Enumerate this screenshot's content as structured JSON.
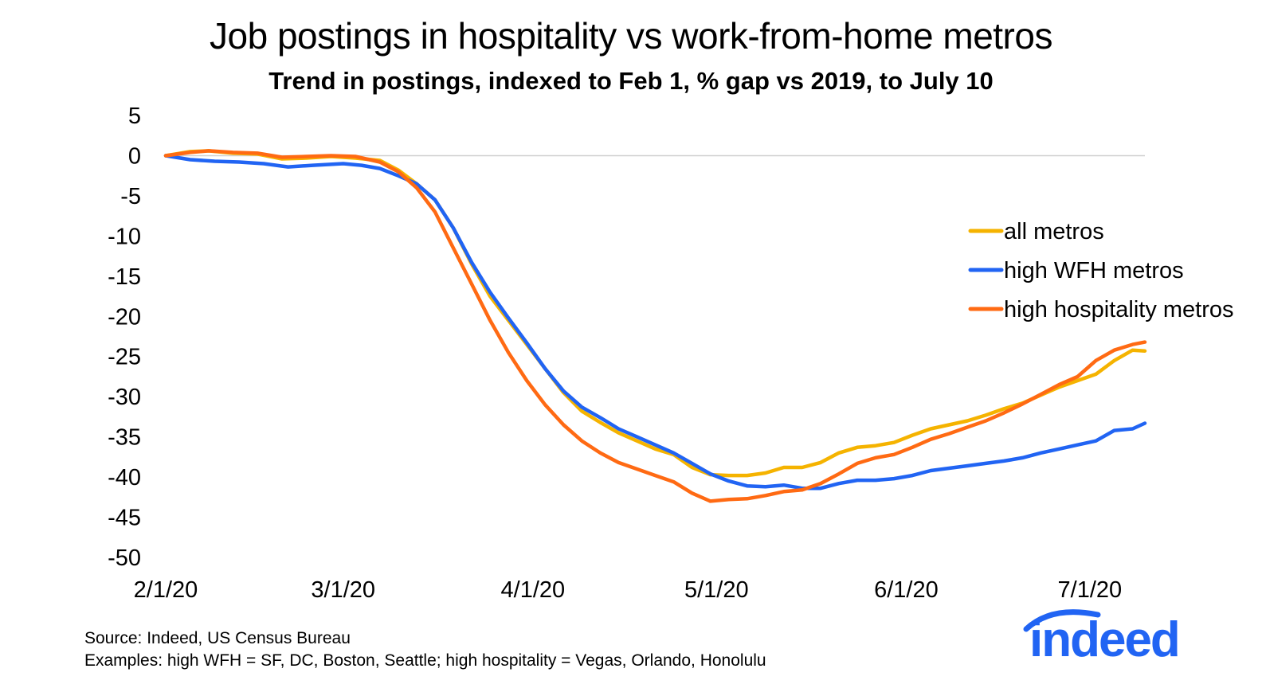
{
  "chart_data": {
    "type": "line",
    "title": "Job postings in hospitality vs work-from-home metros",
    "subtitle": "Trend in postings, indexed to Feb 1, % gap vs 2019, to July 10",
    "xlabel": "",
    "ylabel": "",
    "x_tick_labels": [
      "2/1/20",
      "3/1/20",
      "4/1/20",
      "5/1/20",
      "6/1/20",
      "7/1/20"
    ],
    "x_tick_dates": [
      "2020-02-01",
      "2020-03-01",
      "2020-04-01",
      "2020-05-01",
      "2020-06-01",
      "2020-07-01"
    ],
    "x_range": [
      "2020-02-01",
      "2020-07-10"
    ],
    "ylim": [
      -50,
      5
    ],
    "y_ticks": [
      5,
      0,
      -5,
      -10,
      -15,
      -20,
      -25,
      -30,
      -35,
      -40,
      -45,
      -50
    ],
    "grid": false,
    "zero_line": true,
    "legend_position": "right",
    "series": [
      {
        "name": "all metros",
        "color": "#f5b300",
        "points": [
          [
            "2020-02-01",
            0
          ],
          [
            "2020-02-05",
            0.5
          ],
          [
            "2020-02-08",
            0.6
          ],
          [
            "2020-02-12",
            0.3
          ],
          [
            "2020-02-16",
            0.2
          ],
          [
            "2020-02-20",
            -0.4
          ],
          [
            "2020-02-24",
            -0.3
          ],
          [
            "2020-02-28",
            -0.1
          ],
          [
            "2020-03-03",
            -0.3
          ],
          [
            "2020-03-07",
            -0.6
          ],
          [
            "2020-03-10",
            -1.8
          ],
          [
            "2020-03-13",
            -3.5
          ],
          [
            "2020-03-16",
            -5.5
          ],
          [
            "2020-03-19",
            -9
          ],
          [
            "2020-03-22",
            -13.5
          ],
          [
            "2020-03-25",
            -17.5
          ],
          [
            "2020-03-28",
            -20.5
          ],
          [
            "2020-03-31",
            -23.5
          ],
          [
            "2020-04-03",
            -26.5
          ],
          [
            "2020-04-06",
            -29.5
          ],
          [
            "2020-04-09",
            -31.8
          ],
          [
            "2020-04-12",
            -33.2
          ],
          [
            "2020-04-15",
            -34.5
          ],
          [
            "2020-04-18",
            -35.5
          ],
          [
            "2020-04-21",
            -36.5
          ],
          [
            "2020-04-24",
            -37.2
          ],
          [
            "2020-04-27",
            -38.8
          ],
          [
            "2020-04-30",
            -39.7
          ],
          [
            "2020-05-03",
            -39.8
          ],
          [
            "2020-05-06",
            -39.8
          ],
          [
            "2020-05-09",
            -39.5
          ],
          [
            "2020-05-12",
            -38.8
          ],
          [
            "2020-05-15",
            -38.8
          ],
          [
            "2020-05-18",
            -38.2
          ],
          [
            "2020-05-21",
            -37
          ],
          [
            "2020-05-24",
            -36.3
          ],
          [
            "2020-05-27",
            -36.1
          ],
          [
            "2020-05-30",
            -35.7
          ],
          [
            "2020-06-02",
            -34.8
          ],
          [
            "2020-06-05",
            -34
          ],
          [
            "2020-06-08",
            -33.5
          ],
          [
            "2020-06-11",
            -33
          ],
          [
            "2020-06-14",
            -32.3
          ],
          [
            "2020-06-17",
            -31.5
          ],
          [
            "2020-06-20",
            -30.8
          ],
          [
            "2020-06-23",
            -29.8
          ],
          [
            "2020-06-26",
            -28.8
          ],
          [
            "2020-06-29",
            -28
          ],
          [
            "2020-07-02",
            -27.2
          ],
          [
            "2020-07-05",
            -25.5
          ],
          [
            "2020-07-08",
            -24.2
          ],
          [
            "2020-07-10",
            -24.3
          ]
        ]
      },
      {
        "name": "high WFH metros",
        "color": "#2164f3",
        "points": [
          [
            "2020-02-01",
            0
          ],
          [
            "2020-02-05",
            -0.5
          ],
          [
            "2020-02-09",
            -0.7
          ],
          [
            "2020-02-13",
            -0.8
          ],
          [
            "2020-02-17",
            -1
          ],
          [
            "2020-02-21",
            -1.4
          ],
          [
            "2020-02-25",
            -1.2
          ],
          [
            "2020-03-01",
            -1
          ],
          [
            "2020-03-04",
            -1.2
          ],
          [
            "2020-03-07",
            -1.6
          ],
          [
            "2020-03-10",
            -2.5
          ],
          [
            "2020-03-13",
            -3.5
          ],
          [
            "2020-03-16",
            -5.5
          ],
          [
            "2020-03-19",
            -9
          ],
          [
            "2020-03-22",
            -13.3
          ],
          [
            "2020-03-25",
            -17
          ],
          [
            "2020-03-28",
            -20.2
          ],
          [
            "2020-03-31",
            -23.3
          ],
          [
            "2020-04-03",
            -26.5
          ],
          [
            "2020-04-06",
            -29.3
          ],
          [
            "2020-04-09",
            -31.3
          ],
          [
            "2020-04-12",
            -32.6
          ],
          [
            "2020-04-15",
            -34
          ],
          [
            "2020-04-18",
            -35
          ],
          [
            "2020-04-21",
            -36
          ],
          [
            "2020-04-24",
            -37
          ],
          [
            "2020-04-27",
            -38.3
          ],
          [
            "2020-04-30",
            -39.6
          ],
          [
            "2020-05-03",
            -40.5
          ],
          [
            "2020-05-06",
            -41.1
          ],
          [
            "2020-05-09",
            -41.2
          ],
          [
            "2020-05-12",
            -41
          ],
          [
            "2020-05-15",
            -41.4
          ],
          [
            "2020-05-18",
            -41.4
          ],
          [
            "2020-05-21",
            -40.8
          ],
          [
            "2020-05-24",
            -40.4
          ],
          [
            "2020-05-27",
            -40.4
          ],
          [
            "2020-05-30",
            -40.2
          ],
          [
            "2020-06-02",
            -39.8
          ],
          [
            "2020-06-05",
            -39.2
          ],
          [
            "2020-06-08",
            -38.9
          ],
          [
            "2020-06-11",
            -38.6
          ],
          [
            "2020-06-14",
            -38.3
          ],
          [
            "2020-06-17",
            -38
          ],
          [
            "2020-06-20",
            -37.6
          ],
          [
            "2020-06-23",
            -37
          ],
          [
            "2020-06-26",
            -36.5
          ],
          [
            "2020-06-29",
            -36
          ],
          [
            "2020-07-02",
            -35.5
          ],
          [
            "2020-07-05",
            -34.2
          ],
          [
            "2020-07-08",
            -34
          ],
          [
            "2020-07-10",
            -33.3
          ]
        ]
      },
      {
        "name": "high hospitality metros",
        "color": "#ff6a13",
        "points": [
          [
            "2020-02-01",
            0
          ],
          [
            "2020-02-05",
            0.4
          ],
          [
            "2020-02-08",
            0.6
          ],
          [
            "2020-02-12",
            0.4
          ],
          [
            "2020-02-16",
            0.3
          ],
          [
            "2020-02-20",
            -0.2
          ],
          [
            "2020-02-24",
            -0.1
          ],
          [
            "2020-02-28",
            0
          ],
          [
            "2020-03-03",
            -0.1
          ],
          [
            "2020-03-07",
            -0.8
          ],
          [
            "2020-03-10",
            -2
          ],
          [
            "2020-03-13",
            -4
          ],
          [
            "2020-03-16",
            -7
          ],
          [
            "2020-03-19",
            -11.5
          ],
          [
            "2020-03-22",
            -16
          ],
          [
            "2020-03-25",
            -20.5
          ],
          [
            "2020-03-28",
            -24.5
          ],
          [
            "2020-03-31",
            -28
          ],
          [
            "2020-04-03",
            -31
          ],
          [
            "2020-04-06",
            -33.5
          ],
          [
            "2020-04-09",
            -35.5
          ],
          [
            "2020-04-12",
            -37
          ],
          [
            "2020-04-15",
            -38.2
          ],
          [
            "2020-04-18",
            -39
          ],
          [
            "2020-04-21",
            -39.8
          ],
          [
            "2020-04-24",
            -40.6
          ],
          [
            "2020-04-27",
            -42
          ],
          [
            "2020-04-30",
            -43
          ],
          [
            "2020-05-03",
            -42.8
          ],
          [
            "2020-05-06",
            -42.7
          ],
          [
            "2020-05-09",
            -42.3
          ],
          [
            "2020-05-12",
            -41.8
          ],
          [
            "2020-05-15",
            -41.6
          ],
          [
            "2020-05-18",
            -40.8
          ],
          [
            "2020-05-21",
            -39.6
          ],
          [
            "2020-05-24",
            -38.3
          ],
          [
            "2020-05-27",
            -37.6
          ],
          [
            "2020-05-30",
            -37.2
          ],
          [
            "2020-06-02",
            -36.3
          ],
          [
            "2020-06-05",
            -35.3
          ],
          [
            "2020-06-08",
            -34.6
          ],
          [
            "2020-06-11",
            -33.8
          ],
          [
            "2020-06-14",
            -33
          ],
          [
            "2020-06-17",
            -32
          ],
          [
            "2020-06-20",
            -30.9
          ],
          [
            "2020-06-23",
            -29.7
          ],
          [
            "2020-06-26",
            -28.5
          ],
          [
            "2020-06-29",
            -27.5
          ],
          [
            "2020-07-02",
            -25.5
          ],
          [
            "2020-07-05",
            -24.2
          ],
          [
            "2020-07-08",
            -23.5
          ],
          [
            "2020-07-10",
            -23.2
          ]
        ]
      }
    ]
  },
  "footer": {
    "source_line": "Source: Indeed, US Census Bureau",
    "examples_line": "Examples: high WFH = SF, DC, Boston, Seattle; high hospitality = Vegas, Orlando, Honolulu"
  },
  "logo": {
    "text": "indeed",
    "color": "#2164f3"
  }
}
